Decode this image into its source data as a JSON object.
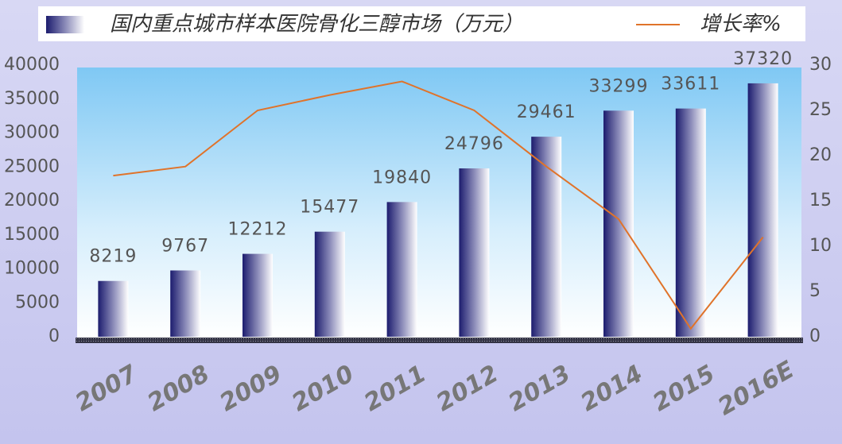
{
  "chart_data": {
    "type": "bar",
    "categories": [
      "2007",
      "2008",
      "2009",
      "2010",
      "2011",
      "2012",
      "2013",
      "2014",
      "2015",
      "2016E"
    ],
    "series": [
      {
        "name": "国内重点城市样本医院骨化三醇市场（万元）",
        "color": "#1c1c6e",
        "type": "bar",
        "values": [
          8219,
          9767,
          12212,
          15477,
          19840,
          24796,
          29461,
          33299,
          33611,
          37320
        ]
      },
      {
        "name": "增长率%",
        "color": "#e0732a",
        "type": "line",
        "axis": "y2",
        "values": [
          17.8,
          18.8,
          25.0,
          26.7,
          28.2,
          25.0,
          18.8,
          13.0,
          0.9,
          11.0
        ]
      }
    ],
    "ylim": [
      0,
      40000
    ],
    "yticks": [
      0,
      5000,
      10000,
      15000,
      20000,
      25000,
      30000,
      35000,
      40000
    ],
    "y2lim": [
      0,
      30
    ],
    "y2ticks": [
      0,
      5,
      10,
      15,
      20,
      25,
      30
    ]
  }
}
